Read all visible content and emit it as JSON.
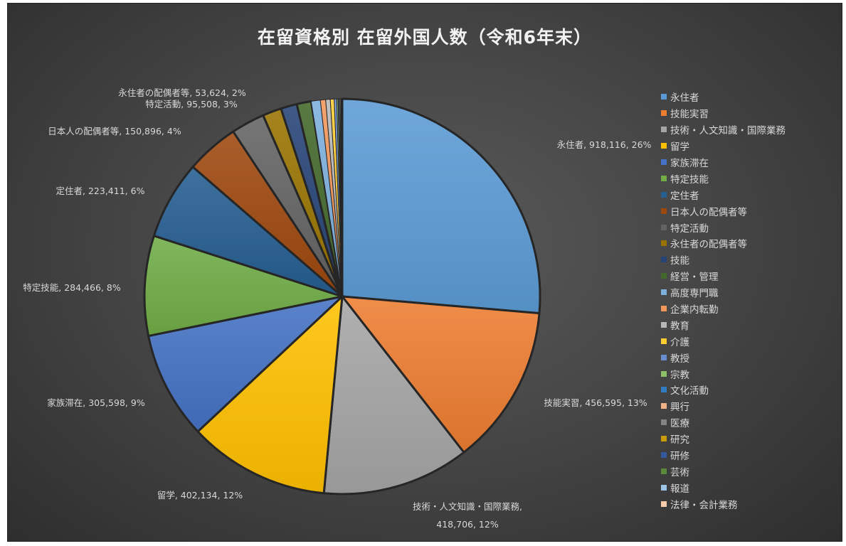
{
  "chart_data": {
    "type": "pie",
    "title": "在留資格別 在留外国人数（令和6年末）",
    "legend_position": "right",
    "slices": [
      {
        "name": "永住者",
        "value": 918116,
        "percent": "26%",
        "color": "#5b9bd5",
        "label": "永住者, 918,116, 26%"
      },
      {
        "name": "技能実習",
        "value": 456595,
        "percent": "13%",
        "color": "#ed7d31",
        "label": "技能実習, 456,595, 13%"
      },
      {
        "name": "技術・人文知識・国際業務",
        "value": 418706,
        "percent": "12%",
        "color": "#a5a5a5",
        "label": "技術・人文知識・国際業務,",
        "label2": "418,706, 12%"
      },
      {
        "name": "留学",
        "value": 402134,
        "percent": "12%",
        "color": "#ffc000",
        "label": "留学, 402,134, 12%"
      },
      {
        "name": "家族滞在",
        "value": 305598,
        "percent": "9%",
        "color": "#4472c4",
        "label": "家族滞在, 305,598, 9%"
      },
      {
        "name": "特定技能",
        "value": 284466,
        "percent": "8%",
        "color": "#70ad47",
        "label": "特定技能, 284,466, 8%"
      },
      {
        "name": "定住者",
        "value": 223411,
        "percent": "6%",
        "color": "#255e91",
        "label": "定住者, 223,411, 6%"
      },
      {
        "name": "日本人の配偶者等",
        "value": 150896,
        "percent": "4%",
        "color": "#9e480e",
        "label": "日本人の配偶者等, 150,896, 4%"
      },
      {
        "name": "特定活動",
        "value": 95508,
        "percent": "3%",
        "color": "#636363",
        "label": "特定活動, 95,508, 3%"
      },
      {
        "name": "永住者の配偶者等",
        "value": 53624,
        "percent": "2%",
        "color": "#997300",
        "label": "永住者の配偶者等, 53,624, 2%"
      },
      {
        "name": "技能",
        "value": 46000,
        "color": "#264478"
      },
      {
        "name": "経営・管理",
        "value": 41000,
        "color": "#43682b"
      },
      {
        "name": "高度専門職",
        "value": 26000,
        "color": "#7cafdd"
      },
      {
        "name": "企業内転勤",
        "value": 15000,
        "color": "#f1975a"
      },
      {
        "name": "教育",
        "value": 13000,
        "color": "#b7b7b7"
      },
      {
        "name": "介護",
        "value": 11000,
        "color": "#ffcd33"
      },
      {
        "name": "教授",
        "value": 7000,
        "color": "#698ed0"
      },
      {
        "name": "宗教",
        "value": 4000,
        "color": "#8cc168"
      },
      {
        "name": "文化活動",
        "value": 3000,
        "color": "#327dc2"
      },
      {
        "name": "興行",
        "value": 2800,
        "color": "#f4b183"
      },
      {
        "name": "医療",
        "value": 2700,
        "color": "#848484"
      },
      {
        "name": "研究",
        "value": 1300,
        "color": "#cc9a06"
      },
      {
        "name": "研修",
        "value": 1000,
        "color": "#335aa1"
      },
      {
        "name": "芸術",
        "value": 500,
        "color": "#5a8a39"
      },
      {
        "name": "報道",
        "value": 200,
        "color": "#9dc3e6"
      },
      {
        "name": "法律・会計業務",
        "value": 100,
        "color": "#f8cbad"
      }
    ]
  }
}
